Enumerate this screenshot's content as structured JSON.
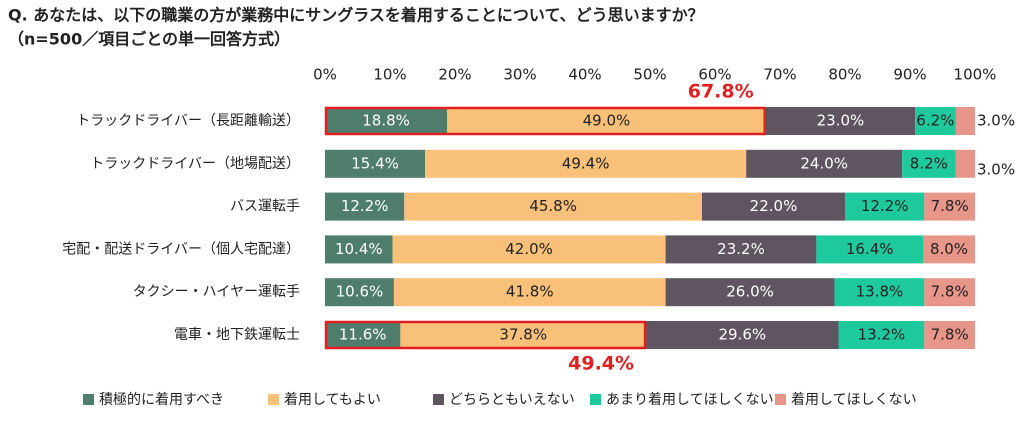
{
  "chart_data": {
    "type": "stacked-barh",
    "title": "Q. あなたは、以下の職業の方が業務中にサングラスを着用することについて、どう思いますか？",
    "subtitle": "（n=500／項目ごとの単一回答方式）",
    "categories": [
      "トラックドライバー（長距離輸送）",
      "トラックドライバー（地場配送）",
      "バス運転手",
      "宅配・配送ドライバー（個人宅配達）",
      "タクシー・ハイヤー運転手",
      "電車・地下鉄運転士"
    ],
    "series": [
      {
        "name": "積極的に着用すべき",
        "color": "#4e7d6b",
        "values": [
          18.8,
          15.4,
          12.2,
          10.4,
          10.6,
          11.6
        ],
        "value_labels": [
          "18.8%",
          "15.4%",
          "12.2%",
          "10.4%",
          "10.6%",
          "11.6%"
        ]
      },
      {
        "name": "着用してもよい",
        "color": "#f9c07a",
        "values": [
          49.0,
          49.4,
          45.8,
          42.0,
          41.8,
          37.8
        ],
        "value_labels": [
          "49.0%",
          "49.4%",
          "45.8%",
          "42.0%",
          "41.8%",
          "37.8%"
        ]
      },
      {
        "name": "どちらともいえない",
        "color": "#5f5560",
        "values": [
          23.0,
          24.0,
          22.0,
          23.2,
          26.0,
          29.6
        ],
        "value_labels": [
          "23.0%",
          "24.0%",
          "22.0%",
          "23.2%",
          "26.0%",
          "29.6%"
        ]
      },
      {
        "name": "あまり着用してほしくない",
        "color": "#1fc99e",
        "values": [
          6.2,
          8.2,
          12.2,
          16.4,
          13.8,
          13.2
        ],
        "value_labels": [
          "6.2%",
          "8.2%",
          "12.2%",
          "16.4%",
          "13.8%",
          "13.2%"
        ]
      },
      {
        "name": "着用してほしくない",
        "color": "#e8958a",
        "values": [
          3.0,
          3.0,
          7.8,
          8.0,
          7.8,
          7.8
        ],
        "value_labels": [
          "3.0%",
          "3.0%",
          "7.8%",
          "8.0%",
          "7.8%",
          "7.8%"
        ]
      }
    ],
    "xlim": [
      0,
      100
    ],
    "xticks": [
      {
        "value": 0,
        "label": "0%"
      },
      {
        "value": 10,
        "label": "10%"
      },
      {
        "value": 20,
        "label": "20%"
      },
      {
        "value": 30,
        "label": "30%"
      },
      {
        "value": 40,
        "label": "40%"
      },
      {
        "value": 50,
        "label": "50%"
      },
      {
        "value": 60,
        "label": "60%"
      },
      {
        "value": 70,
        "label": "70%"
      },
      {
        "value": 80,
        "label": "80%"
      },
      {
        "value": 90,
        "label": "90%"
      },
      {
        "value": 100,
        "label": "100%"
      }
    ],
    "annotations": [
      "67.8%",
      "49.4%"
    ],
    "legend": "bottom"
  }
}
